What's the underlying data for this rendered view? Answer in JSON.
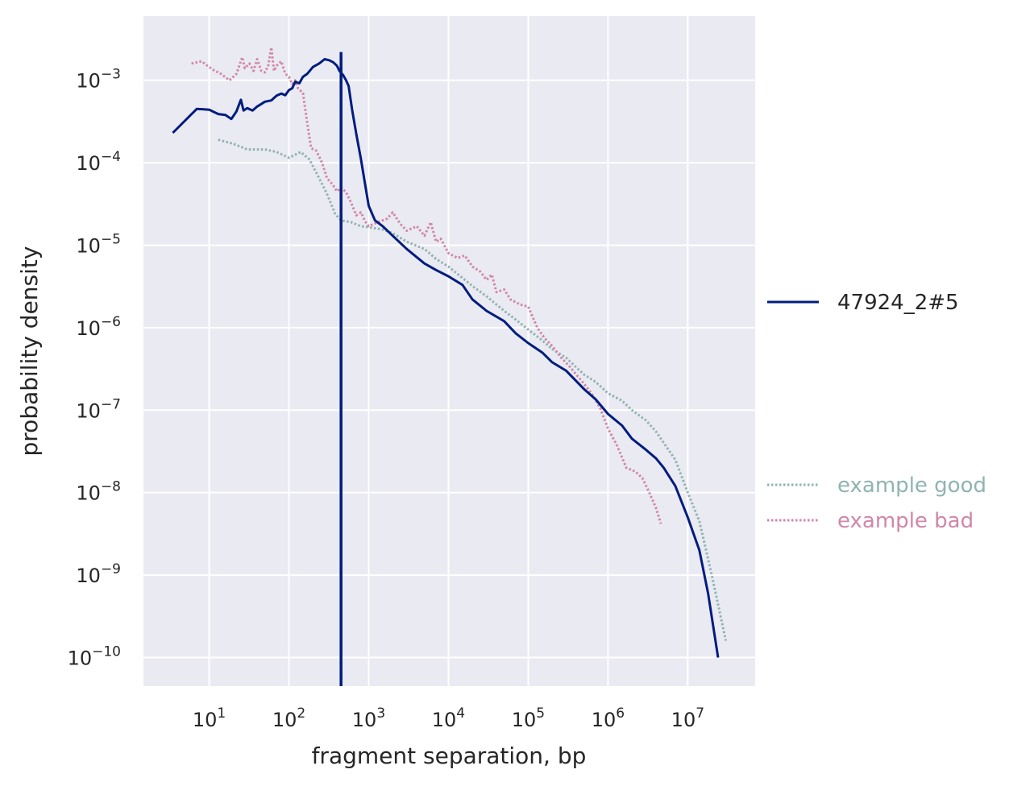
{
  "chart_data": {
    "type": "line",
    "xlabel": "fragment separation, bp",
    "ylabel": "probability density",
    "x_scale": "log",
    "y_scale": "log",
    "xlim": [
      1.5,
      70000000
    ],
    "ylim": [
      4.5e-11,
      0.006
    ],
    "grid": true,
    "x_ticks": [
      {
        "value": 10,
        "base": "10",
        "exp": "1"
      },
      {
        "value": 100,
        "base": "10",
        "exp": "2"
      },
      {
        "value": 1000,
        "base": "10",
        "exp": "3"
      },
      {
        "value": 10000,
        "base": "10",
        "exp": "4"
      },
      {
        "value": 100000,
        "base": "10",
        "exp": "5"
      },
      {
        "value": 1000000,
        "base": "10",
        "exp": "6"
      },
      {
        "value": 10000000,
        "base": "10",
        "exp": "7"
      }
    ],
    "y_ticks": [
      {
        "value": 0.001,
        "base": "10",
        "exp": "−3"
      },
      {
        "value": 0.0001,
        "base": "10",
        "exp": "−4"
      },
      {
        "value": 1e-05,
        "base": "10",
        "exp": "−5"
      },
      {
        "value": 1e-06,
        "base": "10",
        "exp": "−6"
      },
      {
        "value": 1e-07,
        "base": "10",
        "exp": "−7"
      },
      {
        "value": 1e-08,
        "base": "10",
        "exp": "−8"
      },
      {
        "value": 1e-09,
        "base": "10",
        "exp": "−9"
      },
      {
        "value": 1e-10,
        "base": "10",
        "exp": "−10"
      }
    ],
    "vertical_line": {
      "x": 450,
      "color": "#001c7f"
    },
    "legend_placement": "right",
    "series": [
      {
        "name": "47924_2#5",
        "color": "#001c7f",
        "style": "solid",
        "points": [
          [
            3.5,
            0.00023
          ],
          [
            7,
            0.00045
          ],
          [
            10,
            0.00044
          ],
          [
            13,
            0.00039
          ],
          [
            16,
            0.00038
          ],
          [
            19,
            0.00034
          ],
          [
            22,
            0.00042
          ],
          [
            25,
            0.00058
          ],
          [
            27,
            0.00043
          ],
          [
            30,
            0.00046
          ],
          [
            35,
            0.00043
          ],
          [
            40,
            0.00048
          ],
          [
            50,
            0.00055
          ],
          [
            60,
            0.00057
          ],
          [
            70,
            0.00065
          ],
          [
            80,
            0.00069
          ],
          [
            90,
            0.00066
          ],
          [
            100,
            0.00076
          ],
          [
            110,
            0.0008
          ],
          [
            120,
            0.00096
          ],
          [
            135,
            0.00092
          ],
          [
            150,
            0.0011
          ],
          [
            170,
            0.0012
          ],
          [
            200,
            0.00145
          ],
          [
            240,
            0.0016
          ],
          [
            280,
            0.0018
          ],
          [
            320,
            0.00175
          ],
          [
            360,
            0.00165
          ],
          [
            400,
            0.0015
          ],
          [
            430,
            0.0013
          ],
          [
            480,
            0.00115
          ],
          [
            520,
            0.001
          ],
          [
            560,
            0.00085
          ],
          [
            620,
            0.00044
          ],
          [
            700,
            0.00022
          ],
          [
            800,
            0.00011
          ],
          [
            900,
            5.5e-05
          ],
          [
            1000,
            3e-05
          ],
          [
            1200,
            2e-05
          ],
          [
            1500,
            1.7e-05
          ],
          [
            2000,
            1.3e-05
          ],
          [
            3000,
            9e-06
          ],
          [
            5000,
            6e-06
          ],
          [
            7000,
            5e-06
          ],
          [
            10000,
            4.2e-06
          ],
          [
            15000,
            3.3e-06
          ],
          [
            20000,
            2.2e-06
          ],
          [
            30000,
            1.6e-06
          ],
          [
            50000,
            1.2e-06
          ],
          [
            70000,
            8.5e-07
          ],
          [
            100000,
            6.5e-07
          ],
          [
            150000,
            5e-07
          ],
          [
            200000,
            3.8e-07
          ],
          [
            300000,
            3e-07
          ],
          [
            500000,
            1.8e-07
          ],
          [
            700000,
            1.35e-07
          ],
          [
            1000000,
            9e-08
          ],
          [
            1500000,
            6.5e-08
          ],
          [
            2000000,
            4.5e-08
          ],
          [
            3000000,
            3.3e-08
          ],
          [
            4000000,
            2.6e-08
          ],
          [
            5000000,
            2e-08
          ],
          [
            7000000,
            1.2e-08
          ],
          [
            10000000,
            5e-09
          ],
          [
            14000000,
            2e-09
          ],
          [
            18000000,
            6e-10
          ],
          [
            24000000,
            1e-10
          ]
        ]
      },
      {
        "name": "example good",
        "color": "#8fb4b0",
        "style": "dotted",
        "points": [
          [
            13,
            0.00019
          ],
          [
            20,
            0.00017
          ],
          [
            30,
            0.000145
          ],
          [
            50,
            0.000145
          ],
          [
            70,
            0.000135
          ],
          [
            100,
            0.000115
          ],
          [
            140,
            0.000135
          ],
          [
            180,
            0.00011
          ],
          [
            230,
            7e-05
          ],
          [
            300,
            4.2e-05
          ],
          [
            380,
            2.4e-05
          ],
          [
            450,
            2e-05
          ],
          [
            600,
            1.9e-05
          ],
          [
            800,
            1.7e-05
          ],
          [
            1000,
            1.65e-05
          ],
          [
            1500,
            1.55e-05
          ],
          [
            2000,
            1.4e-05
          ],
          [
            3000,
            1.1e-05
          ],
          [
            5000,
            9e-06
          ],
          [
            7000,
            6.8e-06
          ],
          [
            10000,
            5.5e-06
          ],
          [
            15000,
            4e-06
          ],
          [
            20000,
            3.2e-06
          ],
          [
            30000,
            2.4e-06
          ],
          [
            50000,
            1.6e-06
          ],
          [
            70000,
            1.25e-06
          ],
          [
            100000,
            9.5e-07
          ],
          [
            150000,
            7e-07
          ],
          [
            200000,
            5.5e-07
          ],
          [
            300000,
            4.3e-07
          ],
          [
            500000,
            2.7e-07
          ],
          [
            700000,
            2.2e-07
          ],
          [
            1000000,
            1.6e-07
          ],
          [
            1500000,
            1.3e-07
          ],
          [
            2000000,
            1e-07
          ],
          [
            3000000,
            7.5e-08
          ],
          [
            4000000,
            5.5e-08
          ],
          [
            5000000,
            4e-08
          ],
          [
            7000000,
            2.5e-08
          ],
          [
            10000000,
            1e-08
          ],
          [
            14000000,
            4.5e-09
          ],
          [
            20000000,
            1e-09
          ],
          [
            30000000,
            1.6e-10
          ]
        ]
      },
      {
        "name": "example bad",
        "color": "#d087a8",
        "style": "dotted",
        "points": [
          [
            6,
            0.0016
          ],
          [
            8,
            0.0017
          ],
          [
            11,
            0.00135
          ],
          [
            14,
            0.0012
          ],
          [
            18,
            0.001
          ],
          [
            22,
            0.0012
          ],
          [
            26,
            0.0019
          ],
          [
            28,
            0.0014
          ],
          [
            32,
            0.0016
          ],
          [
            36,
            0.0013
          ],
          [
            40,
            0.0018
          ],
          [
            45,
            0.0013
          ],
          [
            50,
            0.00125
          ],
          [
            55,
            0.0015
          ],
          [
            60,
            0.0025
          ],
          [
            65,
            0.0013
          ],
          [
            70,
            0.0015
          ],
          [
            80,
            0.0017
          ],
          [
            90,
            0.0012
          ],
          [
            100,
            0.0011
          ],
          [
            110,
            0.0009
          ],
          [
            120,
            0.001
          ],
          [
            130,
            0.0008
          ],
          [
            150,
            0.0007
          ],
          [
            170,
            0.0003
          ],
          [
            190,
            0.00015
          ],
          [
            220,
            0.00014
          ],
          [
            260,
            0.0001
          ],
          [
            300,
            6.5e-05
          ],
          [
            350,
            5.5e-05
          ],
          [
            400,
            4.5e-05
          ],
          [
            450,
            5e-05
          ],
          [
            520,
            4.4e-05
          ],
          [
            600,
            3.3e-05
          ],
          [
            700,
            2.3e-05
          ],
          [
            800,
            2.5e-05
          ],
          [
            900,
            1.95e-05
          ],
          [
            1000,
            1.7e-05
          ],
          [
            1300,
            1.9e-05
          ],
          [
            1700,
            2.1e-05
          ],
          [
            2000,
            2.5e-05
          ],
          [
            2500,
            1.8e-05
          ],
          [
            3000,
            1.5e-05
          ],
          [
            4000,
            1.7e-05
          ],
          [
            5000,
            1.3e-05
          ],
          [
            6000,
            1.9e-05
          ],
          [
            7000,
            1.1e-05
          ],
          [
            8000,
            1.2e-05
          ],
          [
            10000,
            8e-06
          ],
          [
            13000,
            7e-06
          ],
          [
            16000,
            7.5e-06
          ],
          [
            20000,
            5.5e-06
          ],
          [
            25000,
            4.8e-06
          ],
          [
            30000,
            3.8e-06
          ],
          [
            35000,
            4.4e-06
          ],
          [
            40000,
            2.7e-06
          ],
          [
            50000,
            2.9e-06
          ],
          [
            60000,
            2.2e-06
          ],
          [
            80000,
            1.9e-06
          ],
          [
            100000,
            1.8e-06
          ],
          [
            130000,
            1e-06
          ],
          [
            160000,
            7.5e-07
          ],
          [
            200000,
            6e-07
          ],
          [
            260000,
            4.3e-07
          ],
          [
            330000,
            3.4e-07
          ],
          [
            400000,
            2.7e-07
          ],
          [
            500000,
            2.1e-07
          ],
          [
            650000,
            1.5e-07
          ],
          [
            800000,
            1.05e-07
          ],
          [
            1000000,
            6e-08
          ],
          [
            1300000,
            3.7e-08
          ],
          [
            1700000,
            2e-08
          ],
          [
            2200000,
            1.8e-08
          ],
          [
            2700000,
            1.5e-08
          ],
          [
            3300000,
            1e-08
          ],
          [
            4000000,
            6.5e-09
          ],
          [
            4600000,
            4.2e-09
          ]
        ]
      }
    ]
  }
}
